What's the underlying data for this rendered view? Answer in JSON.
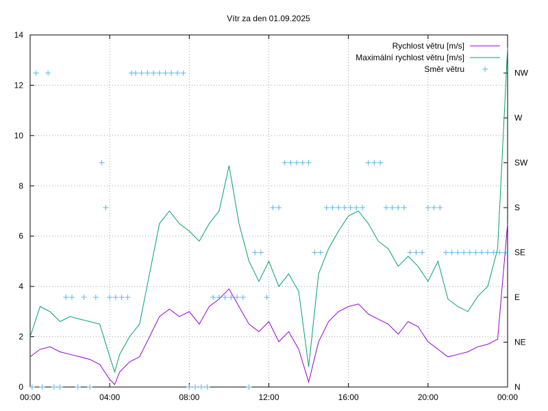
{
  "chart_data": {
    "type": "line",
    "title": "Vítr za den 01.09.2025",
    "xlabel": "",
    "ylabel": "",
    "x_ticks": [
      "00:00",
      "04:00",
      "08:00",
      "12:00",
      "16:00",
      "20:00",
      "00:00"
    ],
    "x_range_hours": [
      0,
      24
    ],
    "ylim": [
      0,
      14
    ],
    "y_ticks": [
      "0",
      "2",
      "4",
      "6",
      "8",
      "10",
      "12",
      "14"
    ],
    "y2_ticks": [
      "N",
      "NE",
      "E",
      "SE",
      "S",
      "SW",
      "W",
      "NW"
    ],
    "grid": true,
    "legend_position": "top-right",
    "series": [
      {
        "name": "Rychlost větru [m/s]",
        "color": "#9400d3",
        "x": [
          0,
          0.5,
          1,
          1.5,
          2,
          2.5,
          3,
          3.5,
          4,
          4.25,
          4.5,
          5,
          5.5,
          6,
          6.5,
          7,
          7.5,
          8,
          8.5,
          9,
          9.5,
          10,
          10.5,
          11,
          11.5,
          12,
          12.5,
          13,
          13.5,
          14,
          14.5,
          15,
          15.5,
          16,
          16.5,
          17,
          17.5,
          18,
          18.5,
          19,
          19.5,
          20,
          20.5,
          21,
          21.5,
          22,
          22.5,
          23,
          23.5,
          24
        ],
        "y": [
          1.2,
          1.5,
          1.6,
          1.4,
          1.3,
          1.2,
          1.1,
          0.9,
          0.3,
          0.1,
          0.6,
          1.0,
          1.2,
          2.0,
          2.8,
          3.1,
          2.8,
          3.0,
          2.5,
          3.2,
          3.5,
          3.9,
          3.2,
          2.5,
          2.2,
          2.6,
          1.8,
          2.2,
          1.5,
          0.2,
          1.8,
          2.6,
          3.0,
          3.2,
          3.3,
          2.9,
          2.7,
          2.5,
          2.1,
          2.6,
          2.4,
          1.8,
          1.5,
          1.2,
          1.3,
          1.4,
          1.6,
          1.7,
          1.9,
          6.5
        ]
      },
      {
        "name": "Maximální rychlost větru [m/s]",
        "color": "#009e73",
        "x": [
          0,
          0.5,
          1,
          1.5,
          2,
          2.5,
          3,
          3.5,
          4,
          4.25,
          4.5,
          5,
          5.5,
          6,
          6.5,
          7,
          7.5,
          8,
          8.5,
          9,
          9.5,
          10,
          10.5,
          11,
          11.5,
          12,
          12.5,
          13,
          13.5,
          14,
          14.5,
          15,
          15.5,
          16,
          16.5,
          17,
          17.5,
          18,
          18.5,
          19,
          19.5,
          20,
          20.5,
          21,
          21.5,
          22,
          22.5,
          23,
          23.5,
          24
        ],
        "y": [
          2.0,
          3.2,
          3.0,
          2.6,
          2.8,
          2.7,
          2.6,
          2.5,
          1.2,
          0.6,
          1.3,
          2.0,
          2.5,
          4.5,
          6.5,
          7.0,
          6.5,
          6.2,
          5.8,
          6.5,
          7.0,
          8.8,
          6.5,
          5.0,
          4.2,
          5.0,
          4.0,
          4.5,
          3.8,
          0.8,
          4.5,
          5.5,
          6.2,
          6.8,
          7.0,
          6.5,
          5.8,
          5.5,
          4.8,
          5.2,
          4.8,
          4.2,
          5.0,
          3.5,
          3.2,
          3.0,
          3.6,
          4.0,
          5.5,
          13.5
        ]
      },
      {
        "name": "Směr větru",
        "color": "#56b4e9",
        "marker": "+",
        "axis": "y2",
        "x": [
          0.1,
          0.3,
          0.6,
          0.9,
          1.2,
          1.5,
          1.8,
          2.1,
          2.4,
          2.7,
          3.0,
          3.3,
          3.6,
          3.8,
          4.0,
          4.3,
          4.6,
          4.9,
          5.1,
          5.3,
          5.6,
          5.9,
          6.2,
          6.5,
          6.8,
          7.1,
          7.4,
          7.7,
          8.0,
          8.3,
          8.6,
          8.9,
          9.2,
          9.5,
          9.8,
          10.1,
          10.4,
          10.7,
          11.0,
          11.3,
          11.6,
          11.9,
          12.2,
          12.5,
          12.8,
          13.1,
          13.4,
          13.7,
          14.0,
          14.3,
          14.6,
          14.9,
          15.2,
          15.5,
          15.8,
          16.1,
          16.4,
          16.7,
          17.0,
          17.3,
          17.6,
          17.9,
          18.2,
          18.5,
          18.8,
          19.1,
          19.4,
          19.7,
          20.0,
          20.3,
          20.6,
          20.9,
          21.2,
          21.5,
          21.8,
          22.1,
          22.4,
          22.7,
          23.0,
          23.3,
          23.6,
          23.9
        ],
        "y": [
          0,
          7,
          0,
          7,
          0,
          0,
          2,
          2,
          0,
          2,
          0,
          2,
          5,
          4,
          2,
          2,
          2,
          2,
          7,
          7,
          7,
          7,
          7,
          7,
          7,
          7,
          7,
          7,
          0,
          0,
          0,
          0,
          2,
          2,
          2,
          2,
          2,
          2,
          0,
          3,
          3,
          2,
          4,
          4,
          5,
          5,
          5,
          5,
          5,
          3,
          3,
          4,
          4,
          4,
          4,
          4,
          4,
          4,
          5,
          5,
          5,
          4,
          4,
          4,
          4,
          3,
          3,
          3,
          4,
          4,
          4,
          3,
          3,
          3,
          3,
          3,
          3,
          3,
          3,
          3,
          3,
          3
        ]
      }
    ]
  }
}
